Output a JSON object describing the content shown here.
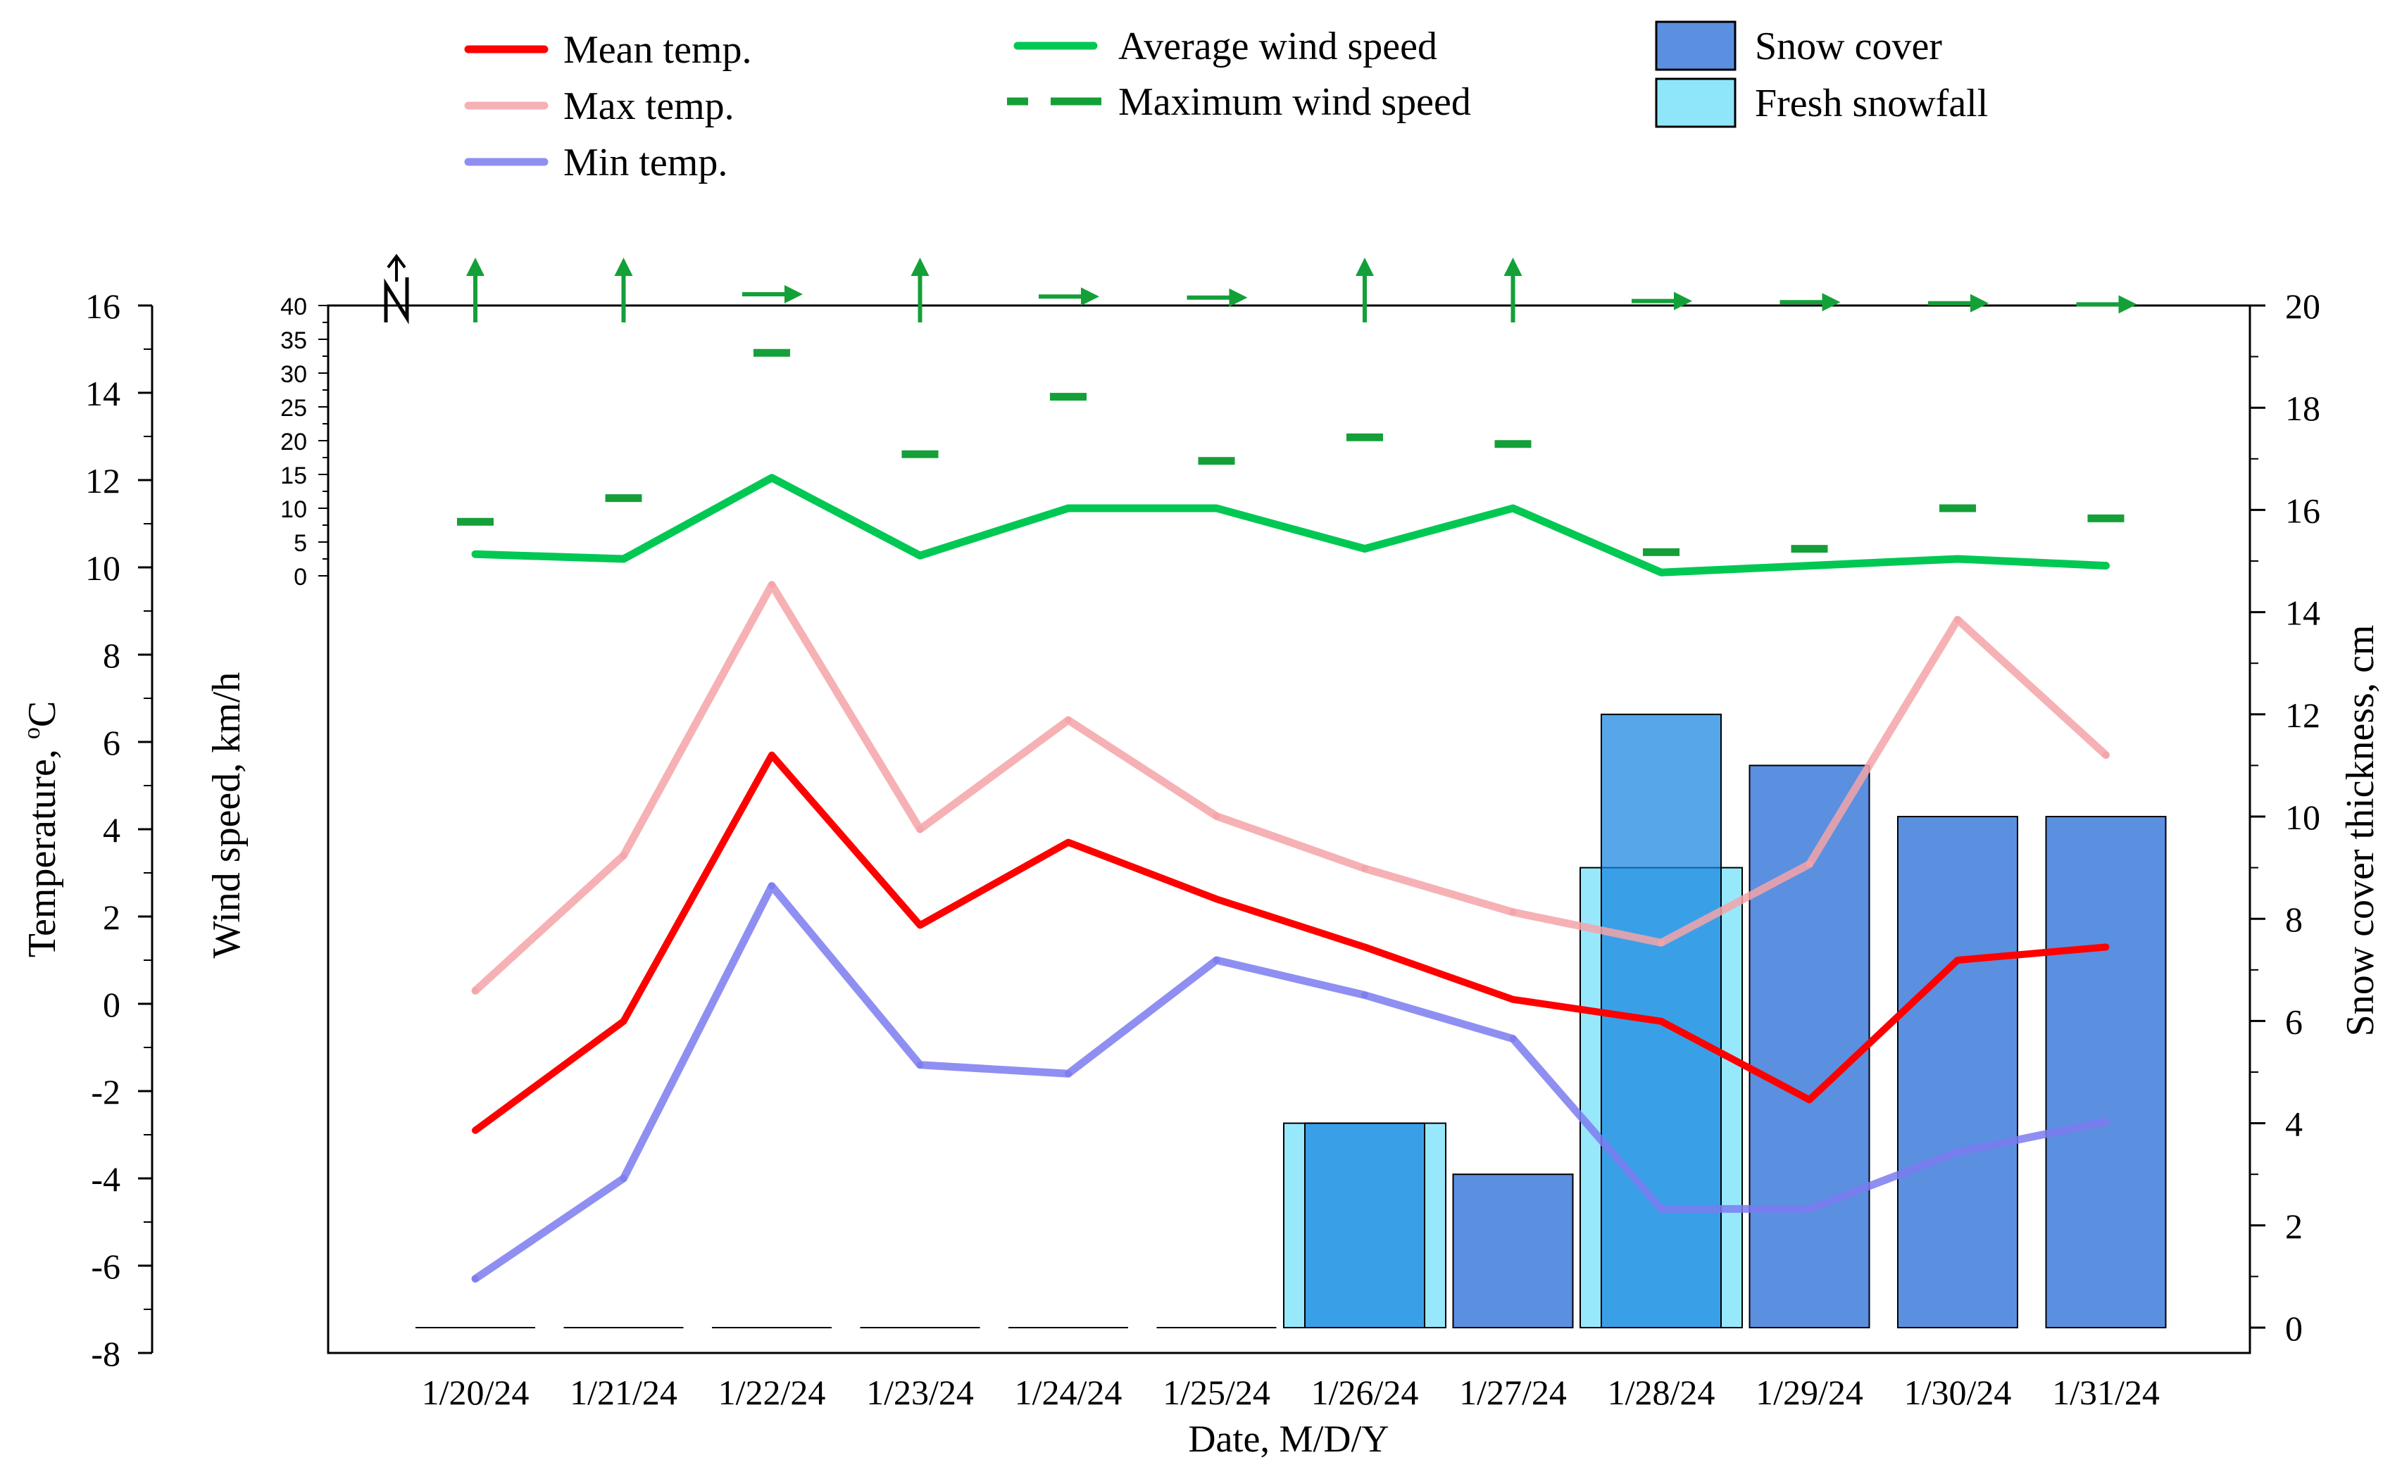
{
  "chart_data": {
    "type": "combo",
    "categories": [
      "1/20/24",
      "1/21/24",
      "1/22/24",
      "1/23/24",
      "1/24/24",
      "1/25/24",
      "1/26/24",
      "1/27/24",
      "1/28/24",
      "1/29/24",
      "1/30/24",
      "1/31/24"
    ],
    "xlabel": "Date, M/D/Y",
    "temperature_axis": {
      "label": "Temperature, ",
      "unit_sup": "o",
      "unit": "C",
      "range": [
        -8,
        16
      ],
      "ticks": [
        "-8",
        "-6",
        "-4",
        "-2",
        "0",
        "2",
        "4",
        "6",
        "8",
        "10",
        "12",
        "14",
        "16"
      ]
    },
    "wind_axis": {
      "label": "Wind speed, km/h",
      "range": [
        0,
        40
      ],
      "ticks": [
        "0",
        "5",
        "10",
        "15",
        "20",
        "25",
        "30",
        "35",
        "40"
      ]
    },
    "snow_axis": {
      "label": "Snow cover thickness, cm",
      "range": [
        0,
        20
      ],
      "ticks": [
        "0",
        "2",
        "4",
        "6",
        "8",
        "10",
        "12",
        "14",
        "16",
        "18",
        "20"
      ]
    },
    "series": [
      {
        "name": "Mean temp.",
        "axis": "temperature",
        "kind": "line",
        "color": "#ff0000",
        "values": [
          -2.9,
          -0.4,
          5.7,
          1.8,
          3.7,
          2.4,
          1.3,
          0.1,
          -0.4,
          -2.2,
          1.0,
          1.3
        ]
      },
      {
        "name": "Max temp.",
        "axis": "temperature",
        "kind": "line",
        "color": "#f5a3a8",
        "values": [
          0.3,
          3.4,
          9.6,
          4.0,
          6.5,
          4.3,
          3.1,
          2.1,
          1.4,
          3.2,
          8.8,
          5.7
        ]
      },
      {
        "name": "Min temp.",
        "axis": "temperature",
        "kind": "line",
        "color": "#7b7bf0",
        "values": [
          -6.3,
          -4.0,
          2.7,
          -1.4,
          -1.6,
          1.0,
          0.2,
          -0.8,
          -4.7,
          -4.7,
          -3.4,
          -2.7
        ]
      },
      {
        "name": "Average wind speed",
        "axis": "wind",
        "kind": "line",
        "color": "#00c853",
        "values": [
          3.2,
          2.5,
          14.5,
          3.0,
          10.0,
          10.0,
          4.0,
          10.0,
          0.5,
          1.5,
          2.5,
          1.5
        ]
      },
      {
        "name": "Maximum wind speed",
        "axis": "wind",
        "kind": "dash",
        "color": "#14a038",
        "values": [
          8.0,
          11.5,
          33.0,
          18.0,
          26.5,
          17.0,
          20.5,
          19.5,
          3.5,
          4.0,
          10.0,
          8.5
        ]
      },
      {
        "name": "Snow cover",
        "axis": "snow",
        "kind": "bar",
        "color": "#5b8fe0",
        "values": [
          0,
          0,
          0,
          0,
          0,
          0,
          4,
          3,
          12,
          11,
          10,
          10
        ]
      },
      {
        "name": "Fresh snowfall",
        "axis": "snow",
        "kind": "bar",
        "color": "#8fe6fb",
        "values": [
          0,
          0,
          0,
          0,
          0,
          0,
          4,
          0,
          9,
          0,
          0,
          0
        ]
      }
    ],
    "wind_direction": [
      "N",
      "N",
      "E",
      "N",
      "E",
      "E",
      "N",
      "N",
      "E",
      "E",
      "E",
      "E"
    ],
    "north_symbol": "N"
  }
}
